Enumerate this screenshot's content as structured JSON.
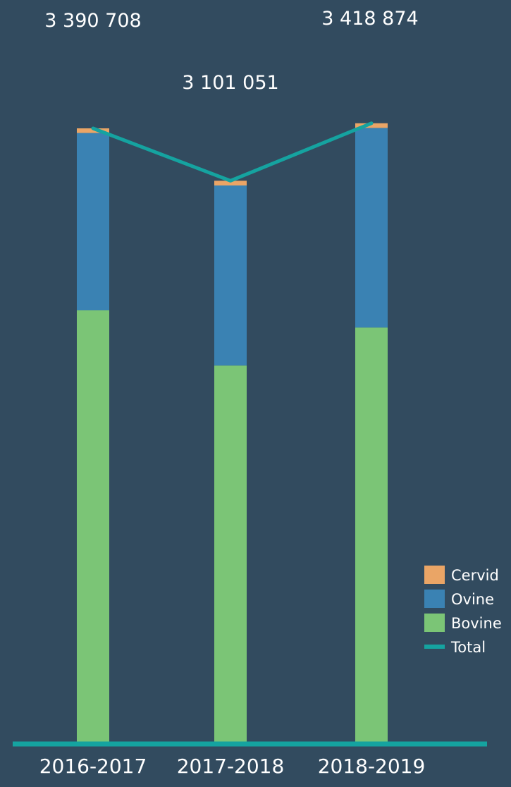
{
  "chart_data": {
    "type": "bar",
    "stacked": true,
    "categories": [
      "2016-2017",
      "2017-2018",
      "2018-2019"
    ],
    "series": [
      {
        "name": "Bovine",
        "color": "#7bc576",
        "values": [
          2385000,
          2080000,
          2290000
        ]
      },
      {
        "name": "Ovine",
        "color": "#3a82b3",
        "values": [
          980000,
          995000,
          1103000
        ]
      },
      {
        "name": "Cervid",
        "color": "#eaa566",
        "values": [
          25708,
          26051,
          25874
        ]
      }
    ],
    "line": {
      "name": "Total",
      "color": "#15a3a0",
      "values": [
        3390708,
        3101051,
        3418874
      ]
    },
    "total_labels": [
      "3 390 708",
      "3 101 051",
      "3 418 874"
    ],
    "legend": {
      "position": "bottom-right",
      "items": [
        {
          "label": "Cervid",
          "color": "#eaa566",
          "kind": "box"
        },
        {
          "label": "Ovine",
          "color": "#3a82b3",
          "kind": "box"
        },
        {
          "label": "Bovine",
          "color": "#7bc576",
          "kind": "box"
        },
        {
          "label": "Total",
          "color": "#15a3a0",
          "kind": "line"
        }
      ]
    },
    "ylim": [
      0,
      4100000
    ],
    "grid": false,
    "title": "",
    "xlabel": "",
    "ylabel": ""
  }
}
